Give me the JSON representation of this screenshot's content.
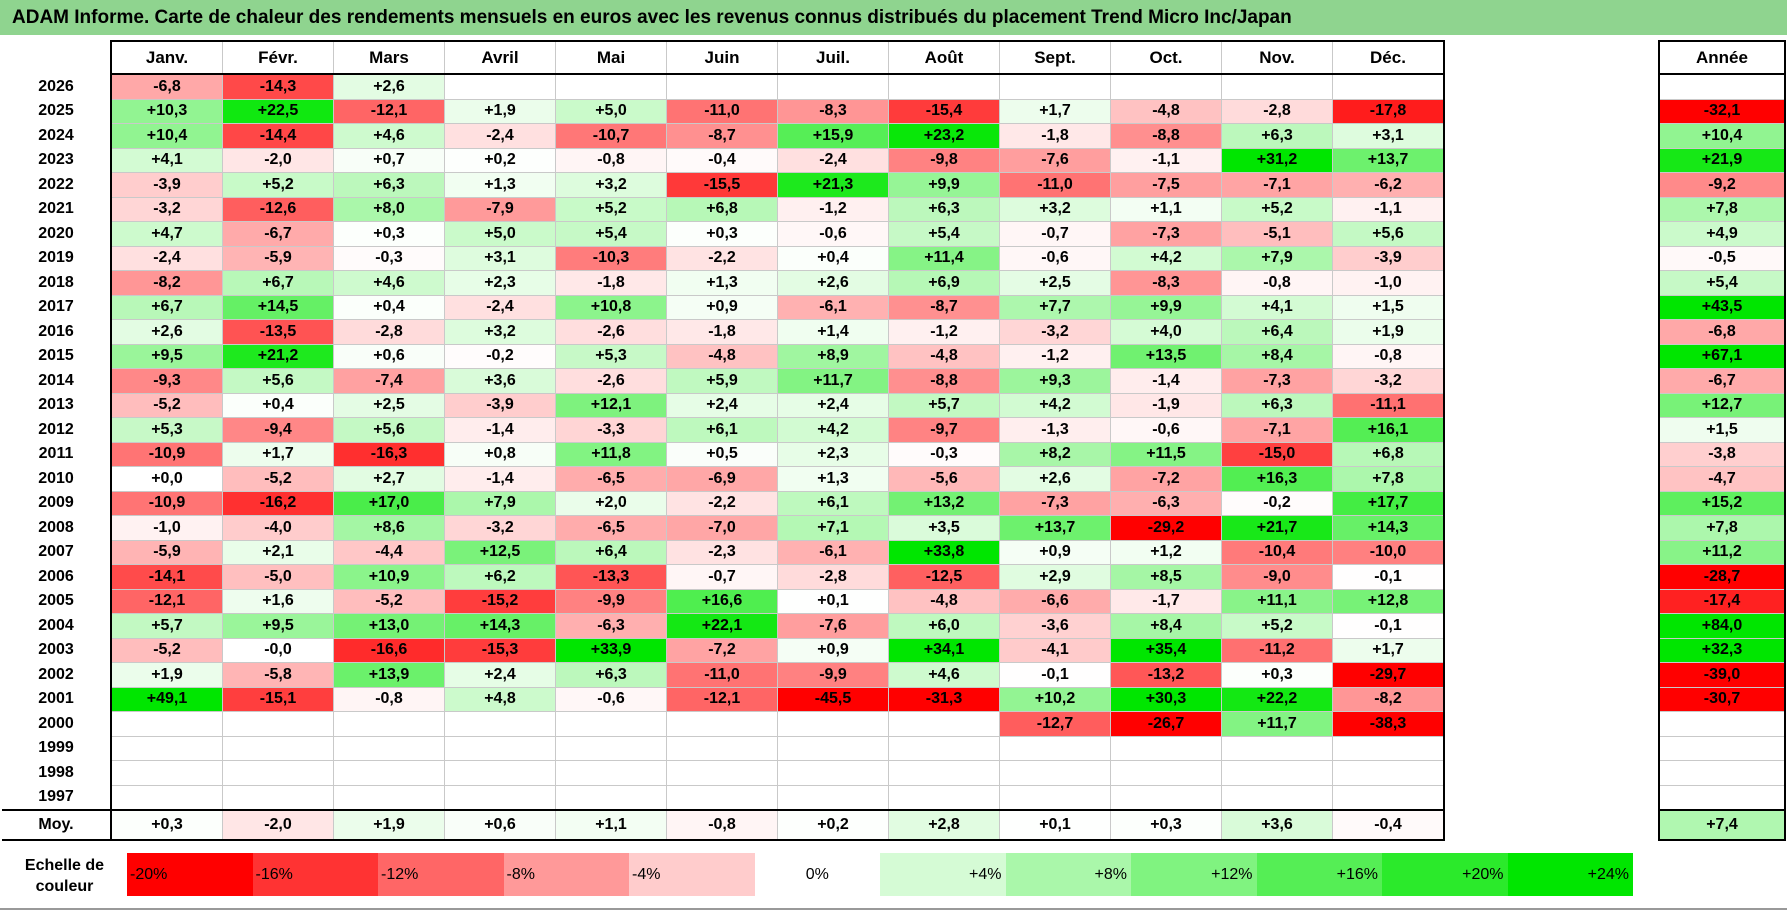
{
  "title": "ADAM Informe. Carte de chaleur des rendements mensuels en euros avec les revenus connus distribués du placement Trend Micro Inc/Japan",
  "chart_data": {
    "type": "heatmap",
    "title": "ADAM Informe. Carte de chaleur des rendements mensuels en euros avec les revenus connus distribués du placement Trend Micro Inc/Japan",
    "months": [
      "Janv.",
      "Févr.",
      "Mars",
      "Avril",
      "Mai",
      "Juin",
      "Juil.",
      "Août",
      "Sept.",
      "Oct.",
      "Nov.",
      "Déc."
    ],
    "year_header": "Année",
    "rows": [
      {
        "year": "2026",
        "values": [
          "-6,8",
          "-14,3",
          "+2,6",
          "",
          "",
          "",
          "",
          "",
          "",
          "",
          "",
          ""
        ],
        "annual": ""
      },
      {
        "year": "2025",
        "values": [
          "+10,3",
          "+22,5",
          "-12,1",
          "+1,9",
          "+5,0",
          "-11,0",
          "-8,3",
          "-15,4",
          "+1,7",
          "-4,8",
          "-2,8",
          "-17,8"
        ],
        "annual": "-32,1"
      },
      {
        "year": "2024",
        "values": [
          "+10,4",
          "-14,4",
          "+4,6",
          "-2,4",
          "-10,7",
          "-8,7",
          "+15,9",
          "+23,2",
          "-1,8",
          "-8,8",
          "+6,3",
          "+3,1"
        ],
        "annual": "+10,4"
      },
      {
        "year": "2023",
        "values": [
          "+4,1",
          "-2,0",
          "+0,7",
          "+0,2",
          "-0,8",
          "-0,4",
          "-2,4",
          "-9,8",
          "-7,6",
          "-1,1",
          "+31,2",
          "+13,7"
        ],
        "annual": "+21,9"
      },
      {
        "year": "2022",
        "values": [
          "-3,9",
          "+5,2",
          "+6,3",
          "+1,3",
          "+3,2",
          "-15,5",
          "+21,3",
          "+9,9",
          "-11,0",
          "-7,5",
          "-7,1",
          "-6,2"
        ],
        "annual": "-9,2"
      },
      {
        "year": "2021",
        "values": [
          "-3,2",
          "-12,6",
          "+8,0",
          "-7,9",
          "+5,2",
          "+6,8",
          "-1,2",
          "+6,3",
          "+3,2",
          "+1,1",
          "+5,2",
          "-1,1"
        ],
        "annual": "+7,8"
      },
      {
        "year": "2020",
        "values": [
          "+4,7",
          "-6,7",
          "+0,3",
          "+5,0",
          "+5,4",
          "+0,3",
          "-0,6",
          "+5,4",
          "-0,7",
          "-7,3",
          "-5,1",
          "+5,6"
        ],
        "annual": "+4,9"
      },
      {
        "year": "2019",
        "values": [
          "-2,4",
          "-5,9",
          "-0,3",
          "+3,1",
          "-10,3",
          "-2,2",
          "+0,4",
          "+11,4",
          "-0,6",
          "+4,2",
          "+7,9",
          "-3,9"
        ],
        "annual": "-0,5"
      },
      {
        "year": "2018",
        "values": [
          "-8,2",
          "+6,7",
          "+4,6",
          "+2,3",
          "-1,8",
          "+1,3",
          "+2,6",
          "+6,9",
          "+2,5",
          "-8,3",
          "-0,8",
          "-1,0"
        ],
        "annual": "+5,4"
      },
      {
        "year": "2017",
        "values": [
          "+6,7",
          "+14,5",
          "+0,4",
          "-2,4",
          "+10,8",
          "+0,9",
          "-6,1",
          "-8,7",
          "+7,7",
          "+9,9",
          "+4,1",
          "+1,5"
        ],
        "annual": "+43,5"
      },
      {
        "year": "2016",
        "values": [
          "+2,6",
          "-13,5",
          "-2,8",
          "+3,2",
          "-2,6",
          "-1,8",
          "+1,4",
          "-1,2",
          "-3,2",
          "+4,0",
          "+6,4",
          "+1,9"
        ],
        "annual": "-6,8"
      },
      {
        "year": "2015",
        "values": [
          "+9,5",
          "+21,2",
          "+0,6",
          "-0,2",
          "+5,3",
          "-4,8",
          "+8,9",
          "-4,8",
          "-1,2",
          "+13,5",
          "+8,4",
          "-0,8"
        ],
        "annual": "+67,1"
      },
      {
        "year": "2014",
        "values": [
          "-9,3",
          "+5,6",
          "-7,4",
          "+3,6",
          "-2,6",
          "+5,9",
          "+11,7",
          "-8,8",
          "+9,3",
          "-1,4",
          "-7,3",
          "-3,2"
        ],
        "annual": "-6,7"
      },
      {
        "year": "2013",
        "values": [
          "-5,2",
          "+0,4",
          "+2,5",
          "-3,9",
          "+12,1",
          "+2,4",
          "+2,4",
          "+5,7",
          "+4,2",
          "-1,9",
          "+6,3",
          "-11,1"
        ],
        "annual": "+12,7"
      },
      {
        "year": "2012",
        "values": [
          "+5,3",
          "-9,4",
          "+5,6",
          "-1,4",
          "-3,3",
          "+6,1",
          "+4,2",
          "-9,7",
          "-1,3",
          "-0,6",
          "-7,1",
          "+16,1"
        ],
        "annual": "+1,5"
      },
      {
        "year": "2011",
        "values": [
          "-10,9",
          "+1,7",
          "-16,3",
          "+0,8",
          "+11,8",
          "+0,5",
          "+2,3",
          "-0,3",
          "+8,2",
          "+11,5",
          "-15,0",
          "+6,8"
        ],
        "annual": "-3,8"
      },
      {
        "year": "2010",
        "values": [
          "+0,0",
          "-5,2",
          "+2,7",
          "-1,4",
          "-6,5",
          "-6,9",
          "+1,3",
          "-5,6",
          "+2,6",
          "-7,2",
          "+16,3",
          "+7,8"
        ],
        "annual": "-4,7"
      },
      {
        "year": "2009",
        "values": [
          "-10,9",
          "-16,2",
          "+17,0",
          "+7,9",
          "+2,0",
          "-2,2",
          "+6,1",
          "+13,2",
          "-7,3",
          "-6,3",
          "-0,2",
          "+17,7"
        ],
        "annual": "+15,2"
      },
      {
        "year": "2008",
        "values": [
          "-1,0",
          "-4,0",
          "+8,6",
          "-3,2",
          "-6,5",
          "-7,0",
          "+7,1",
          "+3,5",
          "+13,7",
          "-29,2",
          "+21,7",
          "+14,3"
        ],
        "annual": "+7,8"
      },
      {
        "year": "2007",
        "values": [
          "-5,9",
          "+2,1",
          "-4,4",
          "+12,5",
          "+6,4",
          "-2,3",
          "-6,1",
          "+33,8",
          "+0,9",
          "+1,2",
          "-10,4",
          "-10,0"
        ],
        "annual": "+11,2"
      },
      {
        "year": "2006",
        "values": [
          "-14,1",
          "-5,0",
          "+10,9",
          "+6,2",
          "-13,3",
          "-0,7",
          "-2,8",
          "-12,5",
          "+2,9",
          "+8,5",
          "-9,0",
          "-0,1"
        ],
        "annual": "-28,7"
      },
      {
        "year": "2005",
        "values": [
          "-12,1",
          "+1,6",
          "-5,2",
          "-15,2",
          "-9,9",
          "+16,6",
          "+0,1",
          "-4,8",
          "-6,6",
          "-1,7",
          "+11,1",
          "+12,8"
        ],
        "annual": "-17,4"
      },
      {
        "year": "2004",
        "values": [
          "+5,7",
          "+9,5",
          "+13,0",
          "+14,3",
          "-6,3",
          "+22,1",
          "-7,6",
          "+6,0",
          "-3,6",
          "+8,4",
          "+5,2",
          "-0,1"
        ],
        "annual": "+84,0"
      },
      {
        "year": "2003",
        "values": [
          "-5,2",
          "-0,0",
          "-16,6",
          "-15,3",
          "+33,9",
          "-7,2",
          "+0,9",
          "+34,1",
          "-4,1",
          "+35,4",
          "-11,2",
          "+1,7"
        ],
        "annual": "+32,3"
      },
      {
        "year": "2002",
        "values": [
          "+1,9",
          "-5,8",
          "+13,9",
          "+2,4",
          "+6,3",
          "-11,0",
          "-9,9",
          "+4,6",
          "-0,1",
          "-13,2",
          "+0,3",
          "-29,7"
        ],
        "annual": "-39,0"
      },
      {
        "year": "2001",
        "values": [
          "+49,1",
          "-15,1",
          "-0,8",
          "+4,8",
          "-0,6",
          "-12,1",
          "-45,5",
          "-31,3",
          "+10,2",
          "+30,3",
          "+22,2",
          "-8,2"
        ],
        "annual": "-30,7"
      },
      {
        "year": "2000",
        "values": [
          "",
          "",
          "",
          "",
          "",
          "",
          "",
          "",
          "-12,7",
          "-26,7",
          "+11,7",
          "-38,3"
        ],
        "annual": ""
      },
      {
        "year": "1999",
        "values": [
          "",
          "",
          "",
          "",
          "",
          "",
          "",
          "",
          "",
          "",
          "",
          ""
        ],
        "annual": ""
      },
      {
        "year": "1998",
        "values": [
          "",
          "",
          "",
          "",
          "",
          "",
          "",
          "",
          "",
          "",
          "",
          ""
        ],
        "annual": ""
      },
      {
        "year": "1997",
        "values": [
          "",
          "",
          "",
          "",
          "",
          "",
          "",
          "",
          "",
          "",
          "",
          ""
        ],
        "annual": ""
      }
    ],
    "average": {
      "label": "Moy.",
      "values": [
        "+0,3",
        "-2,0",
        "+1,9",
        "+0,6",
        "+1,1",
        "-0,8",
        "+0,2",
        "+2,8",
        "+0,1",
        "+0,3",
        "+3,6",
        "-0,4"
      ],
      "annual": "+7,4"
    },
    "scale": {
      "label_line1": "Echelle de",
      "label_line2": "couleur",
      "steps": [
        {
          "label": "-20%",
          "value": -20
        },
        {
          "label": "-16%",
          "value": -16
        },
        {
          "label": "-12%",
          "value": -12
        },
        {
          "label": "-8%",
          "value": -8
        },
        {
          "label": "-4%",
          "value": -4
        },
        {
          "label": "0%",
          "value": 0
        },
        {
          "label": "+4%",
          "value": 4
        },
        {
          "label": "+8%",
          "value": 8
        },
        {
          "label": "+12%",
          "value": 12
        },
        {
          "label": "+16%",
          "value": 16
        },
        {
          "label": "+20%",
          "value": 20
        },
        {
          "label": "+24%",
          "value": 24
        }
      ]
    }
  }
}
